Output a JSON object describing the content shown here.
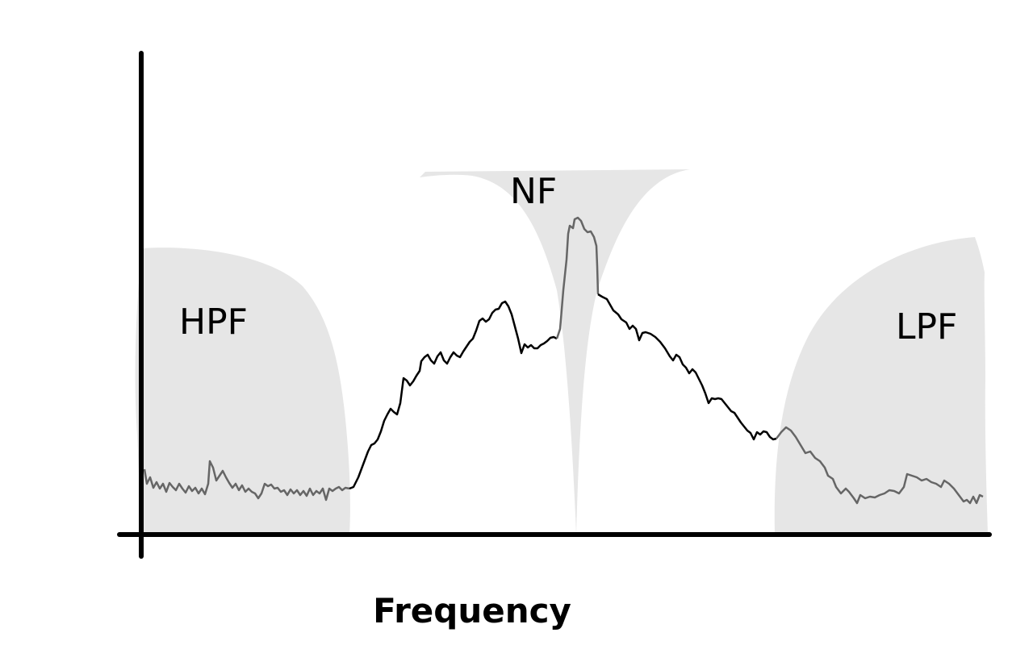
{
  "diagram": {
    "type": "filter-response-sketch",
    "xaxis_label": "Frequency",
    "regions": [
      {
        "id": "hpf",
        "label": "HPF"
      },
      {
        "id": "nf",
        "label": "NF"
      },
      {
        "id": "lpf",
        "label": "LPF"
      }
    ],
    "colors": {
      "filter_fill": "#e6e6e6",
      "signal_passed": "#000000",
      "signal_filtered": "#666666",
      "axis": "#000000"
    }
  }
}
